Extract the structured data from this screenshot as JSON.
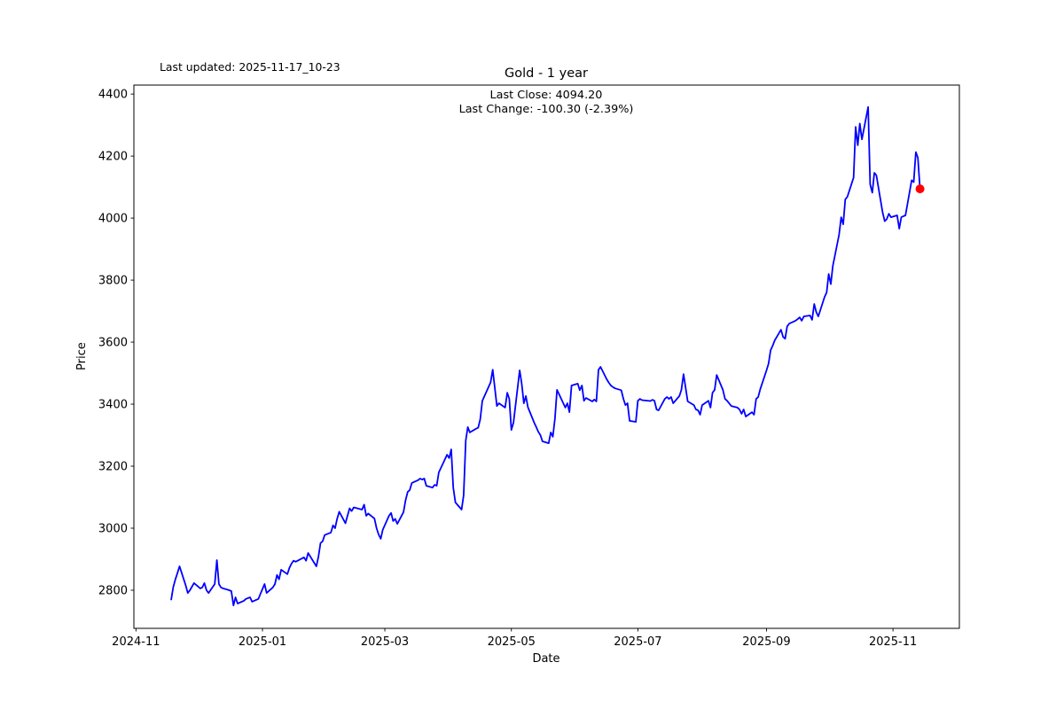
{
  "figure": {
    "last_updated": "Last updated: 2025-11-17_10-23",
    "title": "Gold - 1 year",
    "annotation": {
      "line1": "Last Close: 4094.20",
      "line2": "Last Change: -100.30 (-2.39%)"
    },
    "xlabel": "Date",
    "ylabel": "Price"
  },
  "chart_data": {
    "type": "line",
    "title": "Gold - 1 year",
    "xlabel": "Date",
    "ylabel": "Price",
    "grid": false,
    "legend": null,
    "line_color": "#0000ff",
    "marker_color": "#ff0000",
    "last_close": 4094.2,
    "last_change": -100.3,
    "last_change_pct": -2.39,
    "xlim": [
      "2024-10-31",
      "2025-12-03"
    ],
    "ylim": [
      2677,
      4429
    ],
    "x_tick_labels": [
      "2024-11",
      "2025-01",
      "2025-03",
      "2025-05",
      "2025-07",
      "2025-09",
      "2025-11"
    ],
    "x_tick_dates": [
      "2024-11-01",
      "2025-01-01",
      "2025-03-01",
      "2025-05-01",
      "2025-07-01",
      "2025-09-01",
      "2025-11-01"
    ],
    "y_ticks": [
      2800,
      3000,
      3200,
      3400,
      3600,
      3800,
      4000,
      4200,
      4400
    ],
    "series": [
      {
        "name": "Gold",
        "color": "#0000ff",
        "points": [
          [
            "2024-11-18",
            2770
          ],
          [
            "2024-11-19",
            2810
          ],
          [
            "2024-11-20",
            2835
          ],
          [
            "2024-11-21",
            2855
          ],
          [
            "2024-11-22",
            2877
          ],
          [
            "2024-11-25",
            2815
          ],
          [
            "2024-11-26",
            2791
          ],
          [
            "2024-11-27",
            2800
          ],
          [
            "2024-11-29",
            2823
          ],
          [
            "2024-12-02",
            2806
          ],
          [
            "2024-12-03",
            2809
          ],
          [
            "2024-12-04",
            2823
          ],
          [
            "2024-12-05",
            2800
          ],
          [
            "2024-12-06",
            2791
          ],
          [
            "2024-12-09",
            2820
          ],
          [
            "2024-12-10",
            2897
          ],
          [
            "2024-12-11",
            2820
          ],
          [
            "2024-12-12",
            2809
          ],
          [
            "2024-12-13",
            2806
          ],
          [
            "2024-12-16",
            2800
          ],
          [
            "2024-12-17",
            2797
          ],
          [
            "2024-12-18",
            2751
          ],
          [
            "2024-12-19",
            2777
          ],
          [
            "2024-12-20",
            2757
          ],
          [
            "2024-12-23",
            2766
          ],
          [
            "2024-12-24",
            2772
          ],
          [
            "2024-12-26",
            2777
          ],
          [
            "2024-12-27",
            2763
          ],
          [
            "2024-12-30",
            2772
          ],
          [
            "2024-12-31",
            2788
          ],
          [
            "2025-01-02",
            2820
          ],
          [
            "2025-01-03",
            2791
          ],
          [
            "2025-01-06",
            2809
          ],
          [
            "2025-01-07",
            2820
          ],
          [
            "2025-01-08",
            2849
          ],
          [
            "2025-01-09",
            2835
          ],
          [
            "2025-01-10",
            2866
          ],
          [
            "2025-01-13",
            2852
          ],
          [
            "2025-01-14",
            2872
          ],
          [
            "2025-01-15",
            2886
          ],
          [
            "2025-01-16",
            2895
          ],
          [
            "2025-01-17",
            2892
          ],
          [
            "2025-01-21",
            2906
          ],
          [
            "2025-01-22",
            2895
          ],
          [
            "2025-01-23",
            2920
          ],
          [
            "2025-01-27",
            2877
          ],
          [
            "2025-01-28",
            2909
          ],
          [
            "2025-01-29",
            2952
          ],
          [
            "2025-01-30",
            2958
          ],
          [
            "2025-01-31",
            2978
          ],
          [
            "2025-02-03",
            2986
          ],
          [
            "2025-02-04",
            3009
          ],
          [
            "2025-02-05",
            3000
          ],
          [
            "2025-02-06",
            3030
          ],
          [
            "2025-02-07",
            3053
          ],
          [
            "2025-02-10",
            3016
          ],
          [
            "2025-02-11",
            3040
          ],
          [
            "2025-02-12",
            3064
          ],
          [
            "2025-02-13",
            3055
          ],
          [
            "2025-02-14",
            3067
          ],
          [
            "2025-02-18",
            3060
          ],
          [
            "2025-02-19",
            3076
          ],
          [
            "2025-02-20",
            3040
          ],
          [
            "2025-02-21",
            3047
          ],
          [
            "2025-02-24",
            3031
          ],
          [
            "2025-02-25",
            3000
          ],
          [
            "2025-02-26",
            2980
          ],
          [
            "2025-02-27",
            2966
          ],
          [
            "2025-02-28",
            2995
          ],
          [
            "2025-03-03",
            3040
          ],
          [
            "2025-03-04",
            3049
          ],
          [
            "2025-03-05",
            3023
          ],
          [
            "2025-03-06",
            3030
          ],
          [
            "2025-03-07",
            3014
          ],
          [
            "2025-03-10",
            3052
          ],
          [
            "2025-03-11",
            3090
          ],
          [
            "2025-03-12",
            3117
          ],
          [
            "2025-03-13",
            3123
          ],
          [
            "2025-03-14",
            3146
          ],
          [
            "2025-03-17",
            3155
          ],
          [
            "2025-03-18",
            3160
          ],
          [
            "2025-03-19",
            3157
          ],
          [
            "2025-03-20",
            3160
          ],
          [
            "2025-03-21",
            3137
          ],
          [
            "2025-03-24",
            3131
          ],
          [
            "2025-03-25",
            3140
          ],
          [
            "2025-03-26",
            3137
          ],
          [
            "2025-03-27",
            3180
          ],
          [
            "2025-03-28",
            3194
          ],
          [
            "2025-03-31",
            3237
          ],
          [
            "2025-04-01",
            3226
          ],
          [
            "2025-04-02",
            3254
          ],
          [
            "2025-04-03",
            3131
          ],
          [
            "2025-04-04",
            3083
          ],
          [
            "2025-04-07",
            3060
          ],
          [
            "2025-04-08",
            3106
          ],
          [
            "2025-04-09",
            3283
          ],
          [
            "2025-04-10",
            3326
          ],
          [
            "2025-04-11",
            3309
          ],
          [
            "2025-04-14",
            3321
          ],
          [
            "2025-04-15",
            3324
          ],
          [
            "2025-04-16",
            3351
          ],
          [
            "2025-04-17",
            3411
          ],
          [
            "2025-04-21",
            3470
          ],
          [
            "2025-04-22",
            3511
          ],
          [
            "2025-04-23",
            3454
          ],
          [
            "2025-04-24",
            3394
          ],
          [
            "2025-04-25",
            3403
          ],
          [
            "2025-04-28",
            3389
          ],
          [
            "2025-04-29",
            3437
          ],
          [
            "2025-04-30",
            3417
          ],
          [
            "2025-05-01",
            3317
          ],
          [
            "2025-05-02",
            3340
          ],
          [
            "2025-05-05",
            3509
          ],
          [
            "2025-05-06",
            3466
          ],
          [
            "2025-05-07",
            3403
          ],
          [
            "2025-05-08",
            3426
          ],
          [
            "2025-05-09",
            3390
          ],
          [
            "2025-05-12",
            3340
          ],
          [
            "2025-05-13",
            3326
          ],
          [
            "2025-05-14",
            3311
          ],
          [
            "2025-05-15",
            3300
          ],
          [
            "2025-05-16",
            3280
          ],
          [
            "2025-05-19",
            3274
          ],
          [
            "2025-05-20",
            3309
          ],
          [
            "2025-05-21",
            3295
          ],
          [
            "2025-05-22",
            3354
          ],
          [
            "2025-05-23",
            3446
          ],
          [
            "2025-05-27",
            3389
          ],
          [
            "2025-05-28",
            3403
          ],
          [
            "2025-05-29",
            3374
          ],
          [
            "2025-05-30",
            3460
          ],
          [
            "2025-06-02",
            3466
          ],
          [
            "2025-06-03",
            3445
          ],
          [
            "2025-06-04",
            3460
          ],
          [
            "2025-06-05",
            3411
          ],
          [
            "2025-06-06",
            3420
          ],
          [
            "2025-06-09",
            3409
          ],
          [
            "2025-06-10",
            3415
          ],
          [
            "2025-06-11",
            3409
          ],
          [
            "2025-06-12",
            3511
          ],
          [
            "2025-06-13",
            3520
          ],
          [
            "2025-06-16",
            3480
          ],
          [
            "2025-06-17",
            3469
          ],
          [
            "2025-06-18",
            3460
          ],
          [
            "2025-06-19",
            3455
          ],
          [
            "2025-06-20",
            3451
          ],
          [
            "2025-06-23",
            3445
          ],
          [
            "2025-06-24",
            3417
          ],
          [
            "2025-06-25",
            3397
          ],
          [
            "2025-06-26",
            3403
          ],
          [
            "2025-06-27",
            3346
          ],
          [
            "2025-06-30",
            3343
          ],
          [
            "2025-07-01",
            3411
          ],
          [
            "2025-07-02",
            3417
          ],
          [
            "2025-07-03",
            3413
          ],
          [
            "2025-07-07",
            3410
          ],
          [
            "2025-07-08",
            3414
          ],
          [
            "2025-07-09",
            3411
          ],
          [
            "2025-07-10",
            3383
          ],
          [
            "2025-07-11",
            3380
          ],
          [
            "2025-07-14",
            3417
          ],
          [
            "2025-07-15",
            3423
          ],
          [
            "2025-07-16",
            3417
          ],
          [
            "2025-07-17",
            3423
          ],
          [
            "2025-07-18",
            3403
          ],
          [
            "2025-07-21",
            3426
          ],
          [
            "2025-07-22",
            3446
          ],
          [
            "2025-07-23",
            3497
          ],
          [
            "2025-07-24",
            3454
          ],
          [
            "2025-07-25",
            3409
          ],
          [
            "2025-07-28",
            3397
          ],
          [
            "2025-07-29",
            3383
          ],
          [
            "2025-07-30",
            3380
          ],
          [
            "2025-07-31",
            3366
          ],
          [
            "2025-08-01",
            3397
          ],
          [
            "2025-08-04",
            3411
          ],
          [
            "2025-08-05",
            3389
          ],
          [
            "2025-08-06",
            3437
          ],
          [
            "2025-08-07",
            3446
          ],
          [
            "2025-08-08",
            3494
          ],
          [
            "2025-08-11",
            3446
          ],
          [
            "2025-08-12",
            3417
          ],
          [
            "2025-08-13",
            3411
          ],
          [
            "2025-08-14",
            3403
          ],
          [
            "2025-08-15",
            3394
          ],
          [
            "2025-08-18",
            3389
          ],
          [
            "2025-08-19",
            3383
          ],
          [
            "2025-08-20",
            3369
          ],
          [
            "2025-08-21",
            3383
          ],
          [
            "2025-08-22",
            3360
          ],
          [
            "2025-08-25",
            3374
          ],
          [
            "2025-08-26",
            3366
          ],
          [
            "2025-08-27",
            3417
          ],
          [
            "2025-08-28",
            3423
          ],
          [
            "2025-08-29",
            3448
          ],
          [
            "2025-09-01",
            3509
          ],
          [
            "2025-09-02",
            3531
          ],
          [
            "2025-09-03",
            3574
          ],
          [
            "2025-09-04",
            3589
          ],
          [
            "2025-09-05",
            3606
          ],
          [
            "2025-09-08",
            3640
          ],
          [
            "2025-09-09",
            3617
          ],
          [
            "2025-09-10",
            3611
          ],
          [
            "2025-09-11",
            3651
          ],
          [
            "2025-09-12",
            3660
          ],
          [
            "2025-09-15",
            3669
          ],
          [
            "2025-09-16",
            3674
          ],
          [
            "2025-09-17",
            3680
          ],
          [
            "2025-09-18",
            3669
          ],
          [
            "2025-09-19",
            3683
          ],
          [
            "2025-09-22",
            3686
          ],
          [
            "2025-09-23",
            3672
          ],
          [
            "2025-09-24",
            3723
          ],
          [
            "2025-09-25",
            3697
          ],
          [
            "2025-09-26",
            3683
          ],
          [
            "2025-09-29",
            3746
          ],
          [
            "2025-09-30",
            3760
          ],
          [
            "2025-10-01",
            3820
          ],
          [
            "2025-10-02",
            3787
          ],
          [
            "2025-10-03",
            3846
          ],
          [
            "2025-10-06",
            3946
          ],
          [
            "2025-10-07",
            4003
          ],
          [
            "2025-10-08",
            3980
          ],
          [
            "2025-10-09",
            4060
          ],
          [
            "2025-10-10",
            4069
          ],
          [
            "2025-10-13",
            4131
          ],
          [
            "2025-10-14",
            4294
          ],
          [
            "2025-10-15",
            4235
          ],
          [
            "2025-10-16",
            4305
          ],
          [
            "2025-10-17",
            4254
          ],
          [
            "2025-10-20",
            4358
          ],
          [
            "2025-10-21",
            4109
          ],
          [
            "2025-10-22",
            4082
          ],
          [
            "2025-10-23",
            4146
          ],
          [
            "2025-10-24",
            4138
          ],
          [
            "2025-10-27",
            4019
          ],
          [
            "2025-10-28",
            3990
          ],
          [
            "2025-10-29",
            3997
          ],
          [
            "2025-10-30",
            4014
          ],
          [
            "2025-10-31",
            4003
          ],
          [
            "2025-11-03",
            4009
          ],
          [
            "2025-11-04",
            3966
          ],
          [
            "2025-11-05",
            4003
          ],
          [
            "2025-11-06",
            4006
          ],
          [
            "2025-11-07",
            4009
          ],
          [
            "2025-11-10",
            4122
          ],
          [
            "2025-11-11",
            4116
          ],
          [
            "2025-11-12",
            4213
          ],
          [
            "2025-11-13",
            4194.5
          ],
          [
            "2025-11-14",
            4094.2
          ]
        ]
      }
    ],
    "last_point_marker": {
      "date": "2025-11-14",
      "value": 4094.2,
      "color": "#ff0000"
    }
  }
}
